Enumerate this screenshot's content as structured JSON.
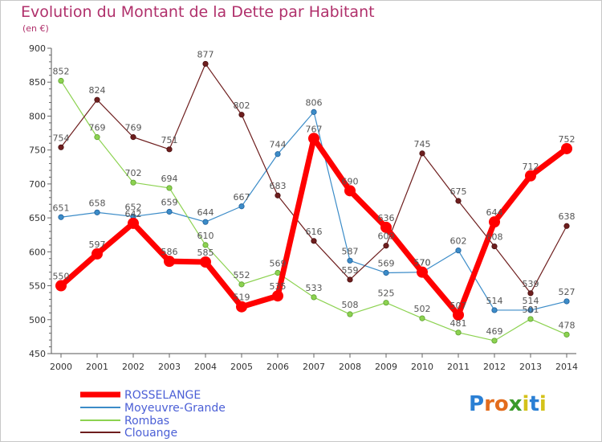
{
  "title": "Evolution du Montant de la Dette par Habitant",
  "unit": "(en €)",
  "logo": {
    "text": "Proxiti",
    "letter_colors": [
      "#2a7fd4",
      "#e36c1d",
      "#e36c1d",
      "#3a9a2a",
      "#d4c21a",
      "#2a7fd4",
      "#d4c21a"
    ]
  },
  "chart_data": {
    "type": "line",
    "title": "Evolution du Montant de la Dette par Habitant",
    "ylabel": "(en €)",
    "xlabel": "",
    "x": [
      "2000",
      "2001",
      "2002",
      "2003",
      "2004",
      "2005",
      "2006",
      "2007",
      "2008",
      "2009",
      "2010",
      "2011",
      "2012",
      "2013",
      "2014"
    ],
    "ylim": [
      450,
      900
    ],
    "yticks": [
      450,
      500,
      550,
      600,
      650,
      700,
      750,
      800,
      850,
      900
    ],
    "grid": false,
    "legend_position": "bottom-left",
    "series": [
      {
        "name": "ROSSELANGE",
        "color": "#ff0000",
        "values": [
          550,
          597,
          642,
          586,
          585,
          519,
          535,
          767,
          690,
          636,
          570,
          507,
          644,
          712,
          752
        ]
      },
      {
        "name": "Moyeuvre-Grande",
        "color": "#3c8cc8",
        "values": [
          651,
          658,
          652,
          659,
          644,
          667,
          744,
          806,
          587,
          569,
          570,
          602,
          514,
          514,
          527
        ]
      },
      {
        "name": "Rombas",
        "color": "#8cd250",
        "values": [
          852,
          769,
          702,
          694,
          610,
          552,
          569,
          533,
          508,
          525,
          502,
          481,
          469,
          501,
          478
        ]
      },
      {
        "name": "Clouange",
        "color": "#6e1e1e",
        "values": [
          754,
          824,
          769,
          751,
          877,
          802,
          683,
          616,
          559,
          609,
          745,
          675,
          608,
          539,
          638
        ]
      }
    ]
  }
}
